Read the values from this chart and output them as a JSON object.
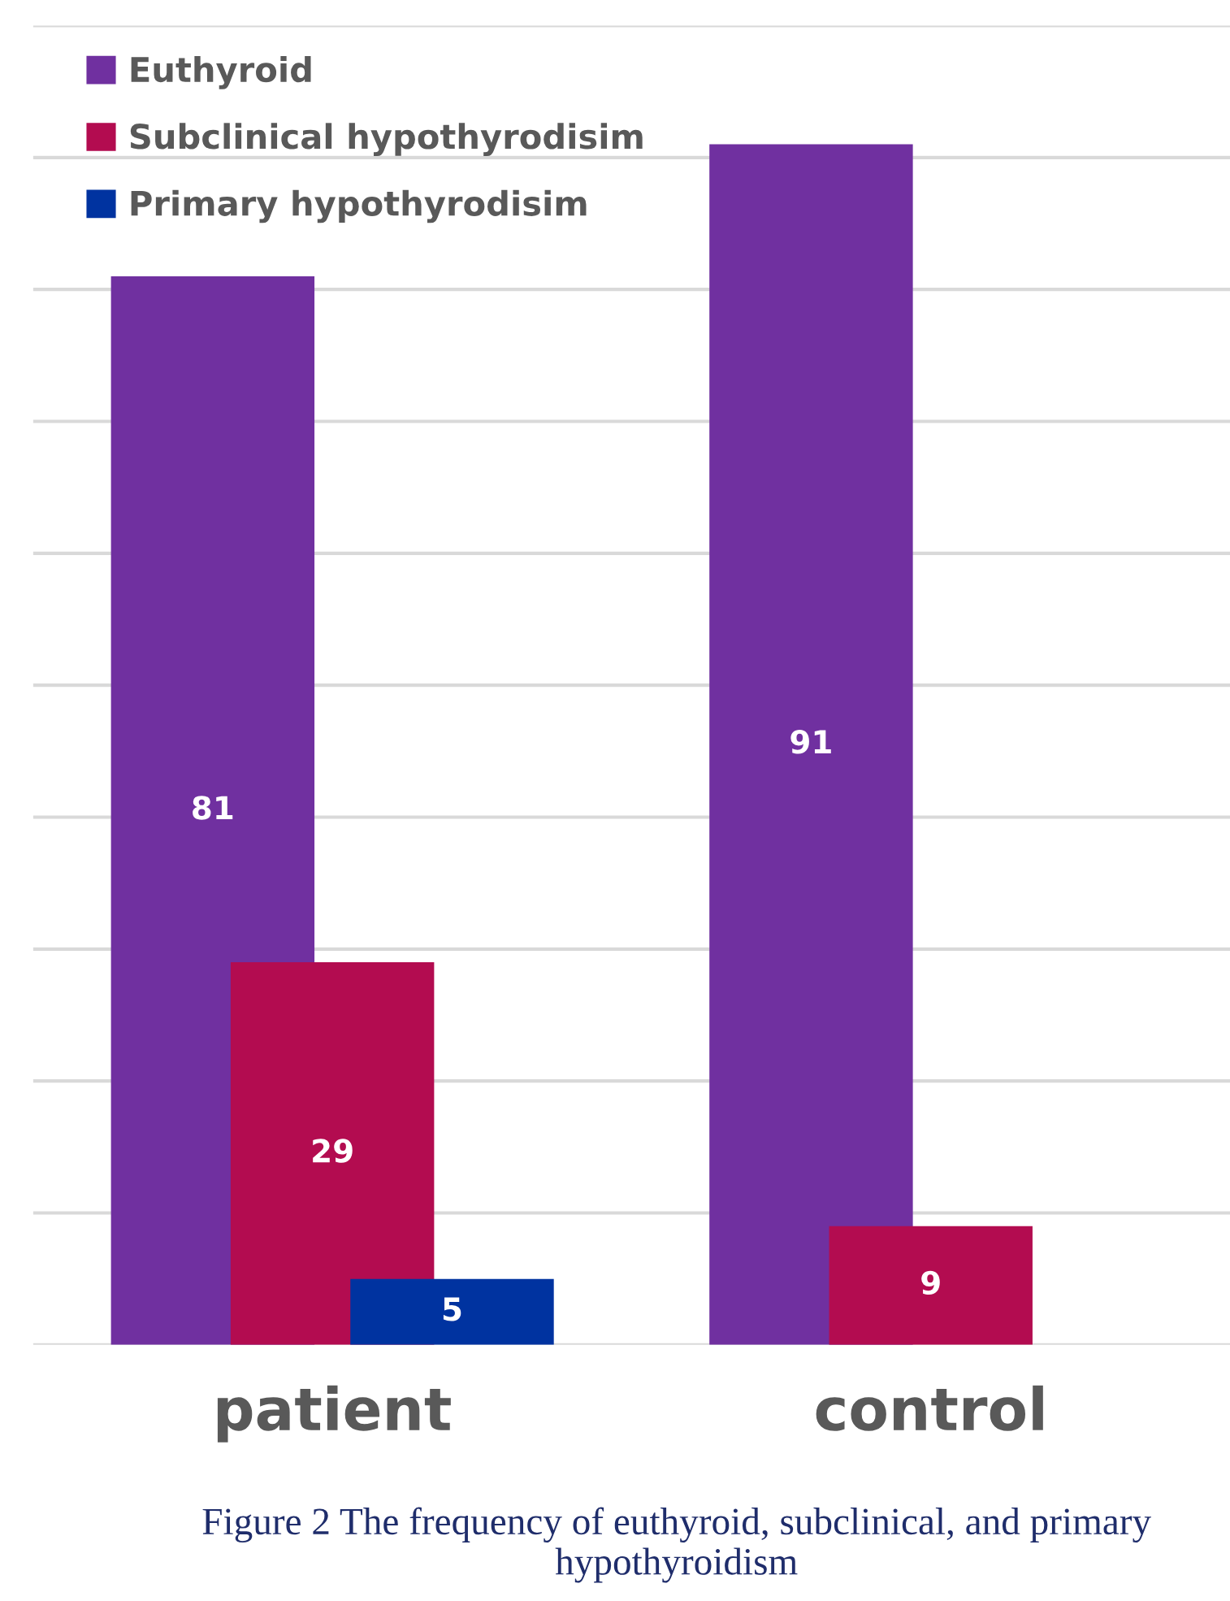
{
  "chart_data": {
    "type": "bar",
    "categories": [
      "patient",
      "control"
    ],
    "series": [
      {
        "name": "Euthyroid",
        "color": "#7030a0",
        "values": [
          81,
          91
        ]
      },
      {
        "name": "Subclinical hypothyrodisim",
        "color": "#b30c50",
        "values": [
          29,
          9
        ]
      },
      {
        "name": "Primary hypothyrodisim",
        "color": "#0033a0",
        "values": [
          5,
          null
        ]
      }
    ],
    "ylim": [
      0,
      100
    ],
    "yticks": [
      {
        "value": 0,
        "label": null
      },
      {
        "value": 10,
        "label": null
      },
      {
        "value": 20,
        "label": null
      },
      {
        "value": 30,
        "label": null
      },
      {
        "value": 40,
        "label": null
      },
      {
        "value": 50,
        "label": null
      },
      {
        "value": 60,
        "label": null
      },
      {
        "value": 70,
        "label": null
      },
      {
        "value": 80,
        "label": null
      },
      {
        "value": 90,
        "label": null
      },
      {
        "value": 100,
        "label": null
      }
    ],
    "grid": "y",
    "legend": "top left",
    "data_labels": true,
    "tick_labels": "x",
    "annotations": [
      "Figure 2 The frequency of euthyroid, subclinical, and primary hypothyroidism"
    ]
  }
}
